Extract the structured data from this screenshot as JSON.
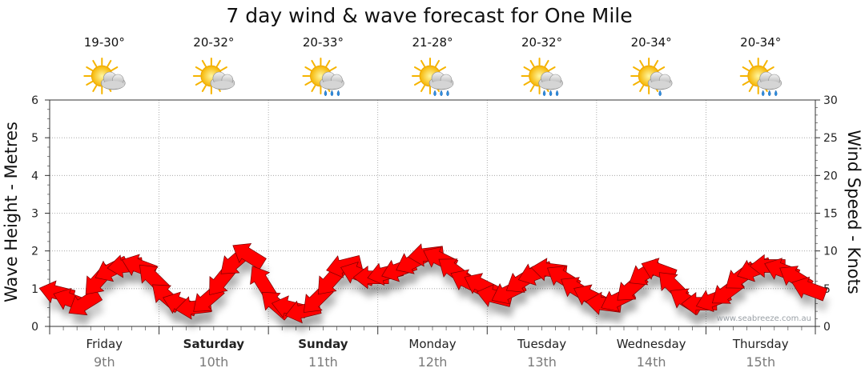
{
  "chart_data": {
    "type": "line",
    "title": "7 day wind & wave forecast for One Mile",
    "ylabel_left": "Wave Height - Metres",
    "ylabel_right": "Wind Speed - Knots",
    "ylim_left": [
      0,
      6
    ],
    "ylim_right": [
      0,
      30
    ],
    "yticks_left": [
      0,
      1,
      2,
      3,
      4,
      5,
      6
    ],
    "yticks_right": [
      0,
      5,
      10,
      15,
      20,
      25,
      30
    ],
    "grid": true,
    "days": [
      {
        "day": "Friday",
        "date": "9th",
        "temp": "19-30°",
        "weather": "partly-cloudy",
        "bold": false
      },
      {
        "day": "Saturday",
        "date": "10th",
        "temp": "20-32°",
        "weather": "partly-cloudy",
        "bold": true
      },
      {
        "day": "Sunday",
        "date": "11th",
        "temp": "20-33°",
        "weather": "showers",
        "bold": true
      },
      {
        "day": "Monday",
        "date": "12th",
        "temp": "21-28°",
        "weather": "showers",
        "bold": false
      },
      {
        "day": "Tuesday",
        "date": "13th",
        "temp": "20-32°",
        "weather": "showers",
        "bold": false
      },
      {
        "day": "Wednesday",
        "date": "14th",
        "temp": "20-34°",
        "weather": "partly-cloudy-drizzle",
        "bold": false
      },
      {
        "day": "Thursday",
        "date": "15th",
        "temp": "20-34°",
        "weather": "showers",
        "bold": false
      }
    ],
    "series": [
      {
        "name": "Wind Speed",
        "axis": "right",
        "unit": "knots",
        "color": "#ff0000",
        "points_per_day": 8,
        "values": [
          4.5,
          3.5,
          3,
          6,
          7.5,
          8,
          8,
          6.5,
          4,
          3,
          2.5,
          3.5,
          6,
          8.5,
          9.5,
          6,
          3,
          2.5,
          2,
          3.5,
          6,
          8,
          7,
          6.5,
          7,
          7.5,
          8.5,
          9.5,
          9,
          7.5,
          6,
          5.5,
          4,
          4.5,
          6,
          7,
          7.5,
          6.5,
          5,
          4,
          3,
          3.5,
          5,
          7,
          7.5,
          5.5,
          3.5,
          3,
          3.5,
          4.5,
          6.5,
          7.5,
          8,
          7.5,
          6.5,
          5
        ]
      }
    ],
    "annotations": [
      "www.seabreeze.com.au"
    ]
  },
  "colors": {
    "arrow": "#ff0000",
    "arrow_stroke": "#7a0000",
    "grid": "#9a9a9a",
    "axis": "#333333"
  }
}
